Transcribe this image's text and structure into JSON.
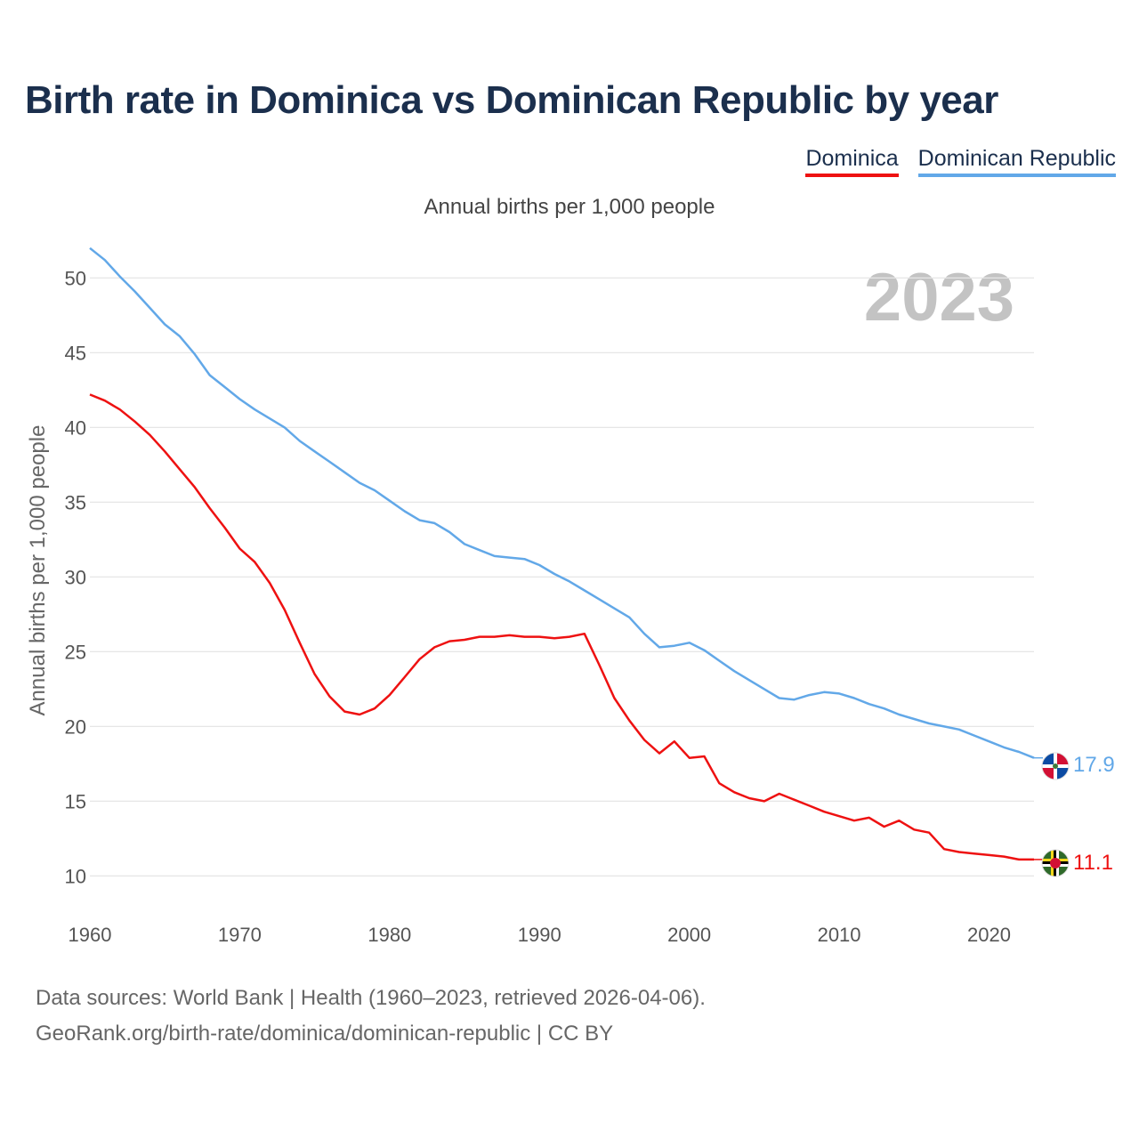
{
  "header": {
    "title": "Birth rate in Dominica vs Dominican Republic by year"
  },
  "legend": [
    {
      "label": "Dominica",
      "color": "#ee1111"
    },
    {
      "label": "Dominican Republic",
      "color": "#62a8e8"
    }
  ],
  "footer": {
    "sources": "Data sources: World Bank | Health (1960–2023, retrieved 2026-04-06).",
    "link": "GeoRank.org/birth-rate/dominica/dominican-republic | CC BY"
  },
  "chart_data": {
    "type": "line",
    "title": "Birth rate in Dominica vs Dominican Republic by year",
    "subtitle": "Annual births per 1,000 people",
    "xlabel": "",
    "ylabel": "Annual births per 1,000 people",
    "year_label": "2023",
    "xlim": [
      1960,
      2023
    ],
    "ylim": [
      8,
      53
    ],
    "x_ticks": [
      1960,
      1970,
      1980,
      1990,
      2000,
      2010,
      2020
    ],
    "y_ticks": [
      10,
      15,
      20,
      25,
      30,
      35,
      40,
      45,
      50
    ],
    "grid": true,
    "legend_position": "top-right",
    "x": [
      1960,
      1961,
      1962,
      1963,
      1964,
      1965,
      1966,
      1967,
      1968,
      1969,
      1970,
      1971,
      1972,
      1973,
      1974,
      1975,
      1976,
      1977,
      1978,
      1979,
      1980,
      1981,
      1982,
      1983,
      1984,
      1985,
      1986,
      1987,
      1988,
      1989,
      1990,
      1991,
      1992,
      1993,
      1994,
      1995,
      1996,
      1997,
      1998,
      1999,
      2000,
      2001,
      2002,
      2003,
      2004,
      2005,
      2006,
      2007,
      2008,
      2009,
      2010,
      2011,
      2012,
      2013,
      2014,
      2015,
      2016,
      2017,
      2018,
      2019,
      2020,
      2021,
      2022,
      2023
    ],
    "series": [
      {
        "name": "Dominica",
        "color": "#ee1111",
        "end_label": "11.1",
        "values": [
          42.2,
          41.8,
          41.2,
          40.4,
          39.5,
          38.4,
          37.2,
          36.0,
          34.6,
          33.3,
          31.9,
          31.0,
          29.6,
          27.8,
          25.6,
          23.5,
          22.0,
          21.0,
          20.8,
          21.2,
          22.1,
          23.3,
          24.5,
          25.3,
          25.7,
          25.8,
          26.0,
          26.0,
          26.1,
          26.0,
          26.0,
          25.9,
          26.0,
          26.2,
          24.1,
          21.9,
          20.4,
          19.1,
          18.2,
          19.0,
          17.9,
          18.0,
          16.2,
          15.6,
          15.2,
          15.0,
          15.5,
          15.1,
          14.7,
          14.3,
          14.0,
          13.7,
          13.9,
          13.3,
          13.7,
          13.1,
          12.9,
          11.8,
          11.6,
          11.5,
          11.4,
          11.3,
          11.1,
          11.1
        ]
      },
      {
        "name": "Dominican Republic",
        "color": "#62a8e8",
        "end_label": "17.9",
        "values": [
          52.0,
          51.2,
          50.1,
          49.1,
          48.0,
          46.9,
          46.1,
          44.9,
          43.5,
          42.7,
          41.9,
          41.2,
          40.6,
          40.0,
          39.1,
          38.4,
          37.7,
          37.0,
          36.3,
          35.8,
          35.1,
          34.4,
          33.8,
          33.6,
          33.0,
          32.2,
          31.8,
          31.4,
          31.3,
          31.2,
          30.8,
          30.2,
          29.7,
          29.1,
          28.5,
          27.9,
          27.3,
          26.2,
          25.3,
          25.4,
          25.6,
          25.1,
          24.4,
          23.7,
          23.1,
          22.5,
          21.9,
          21.8,
          22.1,
          22.3,
          22.2,
          21.9,
          21.5,
          21.2,
          20.8,
          20.5,
          20.2,
          20.0,
          19.8,
          19.4,
          19.0,
          18.6,
          18.3,
          17.9
        ]
      }
    ]
  }
}
